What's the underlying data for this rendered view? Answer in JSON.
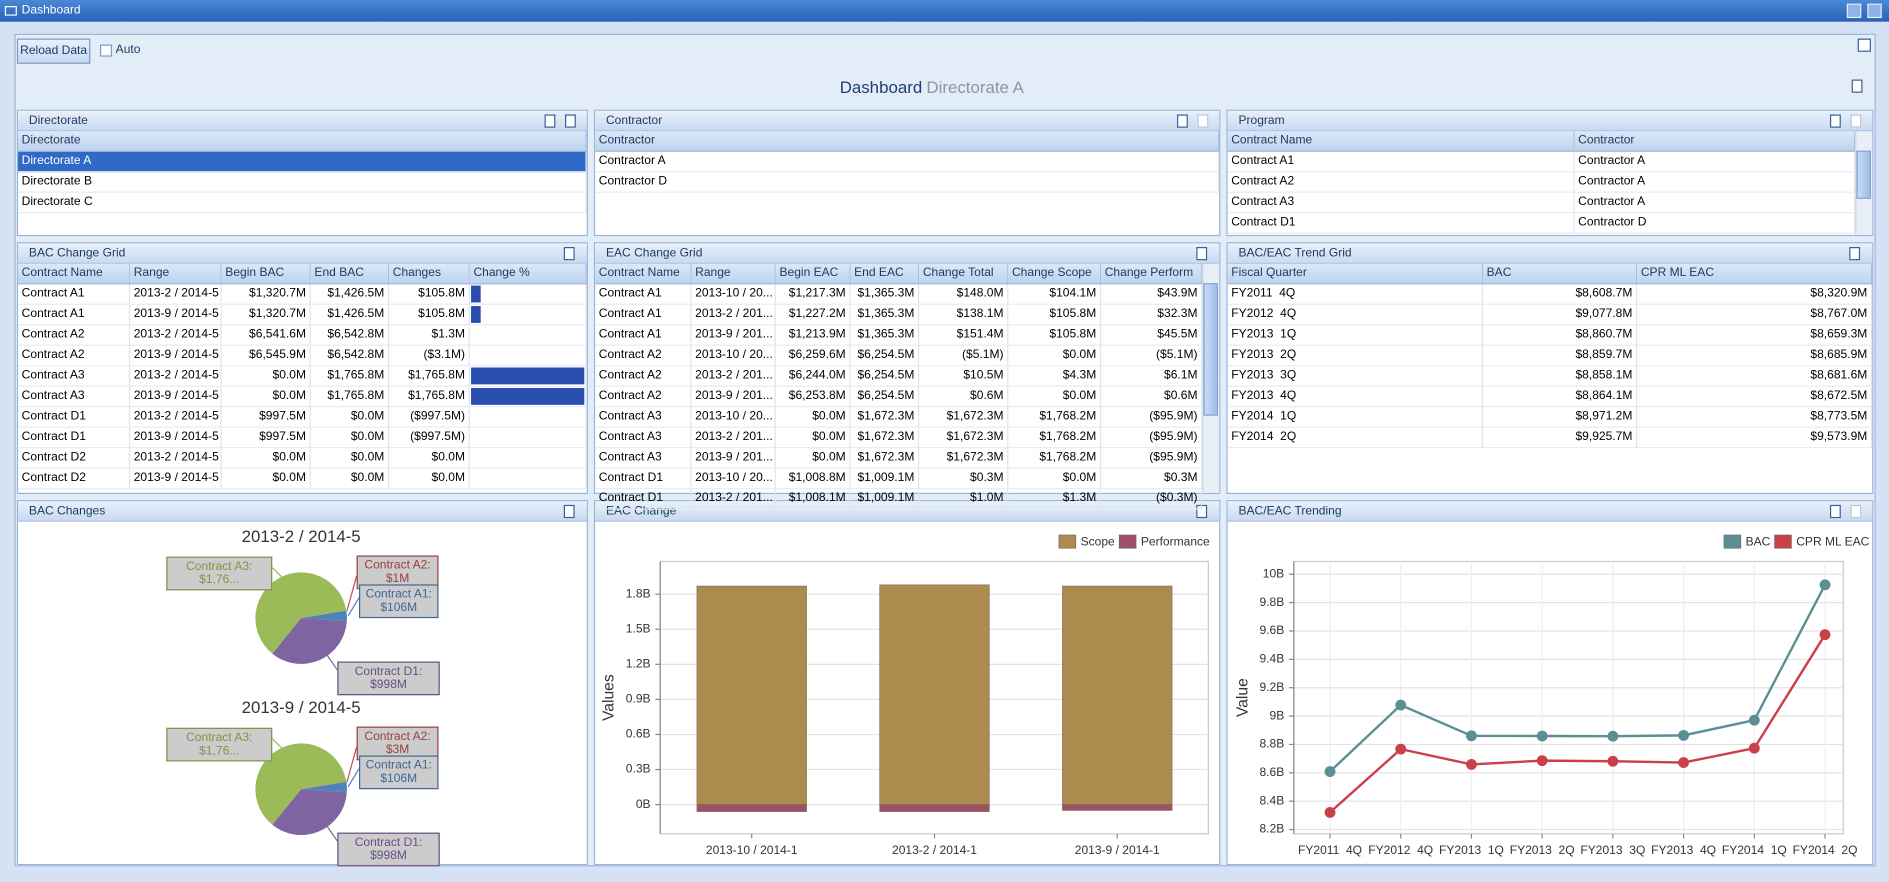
{
  "window": {
    "title": "Dashboard"
  },
  "toolbar": {
    "reload": "Reload Data",
    "auto": "Auto"
  },
  "dashboard": {
    "title": "Dashboard",
    "subtitle": "Directorate A"
  },
  "panels": {
    "directorate": {
      "title": "Directorate",
      "columns": [
        "Directorate"
      ],
      "rows": [
        [
          "Directorate A"
        ],
        [
          "Directorate B"
        ],
        [
          "Directorate C"
        ]
      ]
    },
    "contractor": {
      "title": "Contractor",
      "columns": [
        "Contractor"
      ],
      "rows": [
        [
          "Contractor A"
        ],
        [
          "Contractor D"
        ]
      ]
    },
    "program": {
      "title": "Program",
      "columns": [
        "Contract Name",
        "Contractor"
      ],
      "rows": [
        [
          "Contract A1",
          "Contractor A"
        ],
        [
          "Contract A2",
          "Contractor A"
        ],
        [
          "Contract A3",
          "Contractor A"
        ],
        [
          "Contract D1",
          "Contractor D"
        ]
      ]
    },
    "bac_grid": {
      "title": "BAC Change Grid",
      "columns": [
        "Contract Name",
        "Range",
        "Begin BAC",
        "End BAC",
        "Changes",
        "Change %"
      ],
      "rows": [
        [
          "Contract A1",
          "2013-2 / 2014-5",
          "$1,320.7M",
          "$1,426.5M",
          "$105.8M"
        ],
        [
          "Contract A1",
          "2013-9 / 2014-5",
          "$1,320.7M",
          "$1,426.5M",
          "$105.8M"
        ],
        [
          "Contract A2",
          "2013-2 / 2014-5",
          "$6,541.6M",
          "$6,542.8M",
          "$1.3M"
        ],
        [
          "Contract A2",
          "2013-9 / 2014-5",
          "$6,545.9M",
          "$6,542.8M",
          "($3.1M)"
        ],
        [
          "Contract A3",
          "2013-2 / 2014-5",
          "$0.0M",
          "$1,765.8M",
          "$1,765.8M"
        ],
        [
          "Contract A3",
          "2013-9 / 2014-5",
          "$0.0M",
          "$1,765.8M",
          "$1,765.8M"
        ],
        [
          "Contract D1",
          "2013-2 / 2014-5",
          "$997.5M",
          "$0.0M",
          "($997.5M)"
        ],
        [
          "Contract D1",
          "2013-9 / 2014-5",
          "$997.5M",
          "$0.0M",
          "($997.5M)"
        ],
        [
          "Contract D2",
          "2013-2 / 2014-5",
          "$0.0M",
          "$0.0M",
          "$0.0M"
        ],
        [
          "Contract D2",
          "2013-9 / 2014-5",
          "$0.0M",
          "$0.0M",
          "$0.0M"
        ]
      ],
      "change_pct": [
        8,
        8,
        0,
        0,
        100,
        100,
        null,
        null,
        null,
        null
      ]
    },
    "eac_grid": {
      "title": "EAC Change Grid",
      "columns": [
        "Contract Name",
        "Range",
        "Begin EAC",
        "End EAC",
        "Change Total",
        "Change Scope",
        "Change Perform"
      ],
      "rows": [
        [
          "Contract A1",
          "2013-10 / 20...",
          "$1,217.3M",
          "$1,365.3M",
          "$148.0M",
          "$104.1M",
          "$43.9M"
        ],
        [
          "Contract A1",
          "2013-2 / 201...",
          "$1,227.2M",
          "$1,365.3M",
          "$138.1M",
          "$105.8M",
          "$32.3M"
        ],
        [
          "Contract A1",
          "2013-9 / 201...",
          "$1,213.9M",
          "$1,365.3M",
          "$151.4M",
          "$105.8M",
          "$45.5M"
        ],
        [
          "Contract A2",
          "2013-10 / 20...",
          "$6,259.6M",
          "$6,254.5M",
          "($5.1M)",
          "$0.0M",
          "($5.1M)"
        ],
        [
          "Contract A2",
          "2013-2 / 201...",
          "$6,244.0M",
          "$6,254.5M",
          "$10.5M",
          "$4.3M",
          "$6.1M"
        ],
        [
          "Contract A2",
          "2013-9 / 201...",
          "$6,253.8M",
          "$6,254.5M",
          "$0.6M",
          "$0.0M",
          "$0.6M"
        ],
        [
          "Contract A3",
          "2013-10 / 20...",
          "$0.0M",
          "$1,672.3M",
          "$1,672.3M",
          "$1,768.2M",
          "($95.9M)"
        ],
        [
          "Contract A3",
          "2013-2 / 201...",
          "$0.0M",
          "$1,672.3M",
          "$1,672.3M",
          "$1,768.2M",
          "($95.9M)"
        ],
        [
          "Contract A3",
          "2013-9 / 201...",
          "$0.0M",
          "$1,672.3M",
          "$1,672.3M",
          "$1,768.2M",
          "($95.9M)"
        ],
        [
          "Contract D1",
          "2013-10 / 20...",
          "$1,008.8M",
          "$1,009.1M",
          "$0.3M",
          "$0.0M",
          "$0.3M"
        ],
        [
          "Contract D1",
          "2013-2 / 201...",
          "$1,008.1M",
          "$1,009.1M",
          "$1.0M",
          "$1.3M",
          "($0.3M)"
        ]
      ]
    },
    "trend_grid": {
      "title": "BAC/EAC Trend Grid",
      "columns": [
        "Fiscal Quarter",
        "BAC",
        "CPR ML EAC"
      ],
      "rows": [
        [
          "FY2011  4Q",
          "$8,608.7M",
          "$8,320.9M"
        ],
        [
          "FY2012  4Q",
          "$9,077.8M",
          "$8,767.0M"
        ],
        [
          "FY2013  1Q",
          "$8,860.7M",
          "$8,659.3M"
        ],
        [
          "FY2013  2Q",
          "$8,859.7M",
          "$8,685.9M"
        ],
        [
          "FY2013  3Q",
          "$8,858.1M",
          "$8,681.6M"
        ],
        [
          "FY2013  4Q",
          "$8,864.1M",
          "$8,672.5M"
        ],
        [
          "FY2014  1Q",
          "$8,971.2M",
          "$8,773.5M"
        ],
        [
          "FY2014  2Q",
          "$9,925.7M",
          "$9,573.9M"
        ]
      ]
    },
    "bac_changes": {
      "title": "BAC Changes"
    },
    "eac_change": {
      "title": "EAC Change"
    },
    "trending": {
      "title": "BAC/EAC Trending"
    }
  },
  "chart_data": [
    {
      "type": "pie",
      "title": "2013-2 / 2014-5",
      "values": [
        1765.8,
        1.3,
        105.8,
        997.5
      ],
      "value_labels": [
        "Contract A3: $1,76...",
        "Contract A2: $1M",
        "Contract A1: $106M",
        "Contract D1: $998M"
      ],
      "colors": [
        "#9bbb59",
        "#c0504d",
        "#4f81bd",
        "#8064a2"
      ]
    },
    {
      "type": "pie",
      "title": "2013-9 / 2014-5",
      "values": [
        1765.8,
        3.1,
        105.8,
        997.5
      ],
      "value_labels": [
        "Contract A3: $1,76...",
        "Contract A2: $3M",
        "Contract A1: $106M",
        "Contract D1: $998M"
      ],
      "colors": [
        "#9bbb59",
        "#c0504d",
        "#4f81bd",
        "#8064a2"
      ]
    },
    {
      "type": "bar",
      "y_label": "Values",
      "categories": [
        "2013-10 / 2014-1",
        "2013-2 / 2014-1",
        "2013-9 / 2014-1"
      ],
      "series": [
        {
          "name": "Scope",
          "color": "#ad8a4e",
          "values": [
            1.87,
            1.88,
            1.87
          ]
        },
        {
          "name": "Performance",
          "color": "#9e5068",
          "values": [
            -0.06,
            -0.06,
            -0.05
          ]
        }
      ],
      "ylim": [
        -0.25,
        2.08
      ],
      "yticks": [
        {
          "value": 0,
          "label": "0B"
        },
        {
          "value": 0.3,
          "label": "0.3B"
        },
        {
          "value": 0.6,
          "label": "0.6B"
        },
        {
          "value": 0.9,
          "label": "0.9B"
        },
        {
          "value": 1.2,
          "label": "1.2B"
        },
        {
          "value": 1.5,
          "label": "1.5B"
        },
        {
          "value": 1.8,
          "label": "1.8B"
        }
      ],
      "grid": true,
      "stacked": true
    },
    {
      "type": "line",
      "y_label": "Value",
      "categories": [
        "FY2011  4Q",
        "FY2012  4Q",
        "FY2013  1Q",
        "FY2013  2Q",
        "FY2013  3Q",
        "FY2013  4Q",
        "FY2014  1Q",
        "FY2014  2Q"
      ],
      "series": [
        {
          "name": "BAC",
          "color": "#5b8f95",
          "values": [
            8.6087,
            9.0778,
            8.8607,
            8.8597,
            8.8581,
            8.8641,
            8.9712,
            9.9257
          ]
        },
        {
          "name": "CPR ML EAC",
          "color": "#c9404a",
          "values": [
            8.3209,
            8.767,
            8.6593,
            8.6859,
            8.6816,
            8.6725,
            8.7735,
            9.5739
          ]
        }
      ],
      "ylim": [
        8.17,
        10.09
      ],
      "yticks": [
        {
          "value": 8.2,
          "label": "8.2B"
        },
        {
          "value": 8.4,
          "label": "8.4B"
        },
        {
          "value": 8.6,
          "label": "8.6B"
        },
        {
          "value": 8.8,
          "label": "8.8B"
        },
        {
          "value": 9,
          "label": "9B"
        },
        {
          "value": 9.2,
          "label": "9.2B"
        },
        {
          "value": 9.4,
          "label": "9.4B"
        },
        {
          "value": 9.6,
          "label": "9.6B"
        },
        {
          "value": 9.8,
          "label": "9.8B"
        },
        {
          "value": 10,
          "label": "10B"
        }
      ],
      "grid": true
    }
  ]
}
